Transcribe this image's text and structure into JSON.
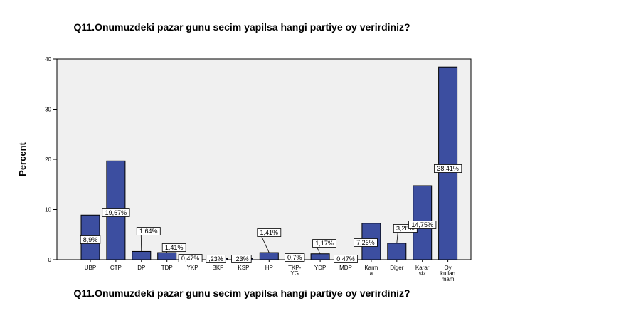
{
  "chart_data": {
    "type": "bar",
    "title": "Q11.Onumuzdeki pazar gunu secim yapilsa hangi partiye oy verirdiniz?",
    "xlabel": "Q11.Onumuzdeki pazar gunu secim yapilsa hangi partiye oy verirdiniz?",
    "ylabel": "Percent",
    "ylim": [
      0,
      40
    ],
    "yticks": [
      0,
      10,
      20,
      30,
      40
    ],
    "grid": false,
    "categories": [
      [
        "UBP"
      ],
      [
        "CTP"
      ],
      [
        "DP"
      ],
      [
        "TDP"
      ],
      [
        "YKP"
      ],
      [
        "BKP"
      ],
      [
        "KSP"
      ],
      [
        "HP"
      ],
      [
        "TKP-",
        "YG"
      ],
      [
        "YDP"
      ],
      [
        "MDP"
      ],
      [
        "Karm",
        "a"
      ],
      [
        "Diger"
      ],
      [
        "Karar",
        "siz"
      ],
      [
        "Oy",
        "kullan",
        "mam"
      ]
    ],
    "values": [
      8.9,
      19.67,
      1.64,
      1.41,
      0.47,
      0.23,
      0.23,
      1.41,
      0.7,
      1.17,
      0.47,
      7.26,
      3.28,
      14.75,
      38.41
    ],
    "data_labels": [
      "8,9%",
      "19,67%",
      "1,64%",
      "1,41%",
      "0,47%",
      ",23%",
      ",23%",
      "1,41%",
      "0,7%",
      "1,17%",
      "0,47%",
      "7,26%",
      "3,28%",
      "14,75%",
      "38,41%"
    ],
    "bar_color": "#3c4ea0",
    "plot_background": "#f0f0f0"
  }
}
